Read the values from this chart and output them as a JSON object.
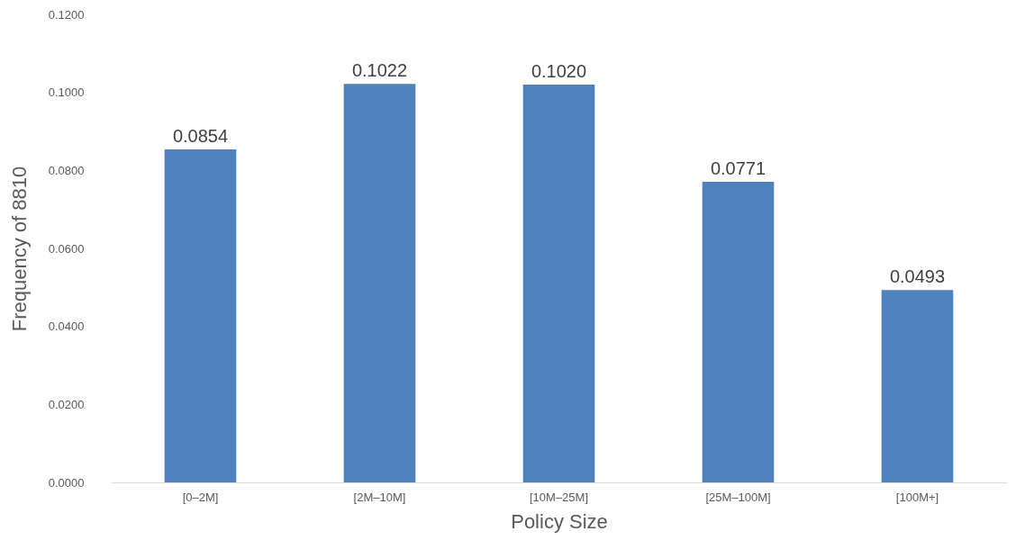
{
  "chart_data": {
    "type": "bar",
    "xlabel": "Policy Size",
    "ylabel": "Frequency of 8810",
    "categories": [
      "[0–2M]",
      "[2M–10M]",
      "[10M–25M]",
      "[25M–100M]",
      "[100M+]"
    ],
    "values": [
      0.0854,
      0.1022,
      0.102,
      0.0771,
      0.0493
    ],
    "value_labels": [
      "0.0854",
      "0.1022",
      "0.1020",
      "0.0771",
      "0.0493"
    ],
    "color": "#4f81bd",
    "ylim": [
      0,
      0.12
    ],
    "yticks": [
      {
        "value": 0,
        "label": "0.0000"
      },
      {
        "value": 0.02,
        "label": "0.0200"
      },
      {
        "value": 0.04,
        "label": "0.0400"
      },
      {
        "value": 0.06,
        "label": "0.0600"
      },
      {
        "value": 0.08,
        "label": "0.0800"
      },
      {
        "value": 0.1,
        "label": "0.1000"
      },
      {
        "value": 0.12,
        "label": "0.1200"
      }
    ],
    "grid": false
  }
}
